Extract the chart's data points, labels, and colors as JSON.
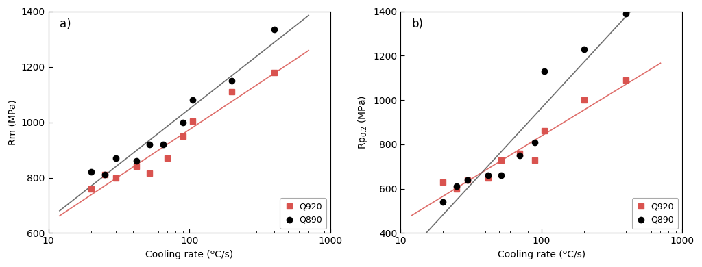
{
  "panel_a": {
    "title": "a)",
    "ylabel": "Rm (MPa)",
    "xlabel": "Cooling rate (ºC/s)",
    "ylim": [
      600,
      1400
    ],
    "xlim": [
      10,
      1000
    ],
    "yticks": [
      600,
      800,
      1000,
      1200,
      1400
    ],
    "Q920_x": [
      20,
      25,
      30,
      42,
      52,
      70,
      90,
      105,
      200,
      400
    ],
    "Q920_y": [
      760,
      810,
      800,
      840,
      815,
      870,
      950,
      1005,
      1110,
      1180
    ],
    "Q890_x": [
      20,
      25,
      30,
      42,
      52,
      65,
      90,
      105,
      200,
      400
    ],
    "Q890_y": [
      820,
      810,
      870,
      860,
      920,
      920,
      1000,
      1080,
      1150,
      1335
    ]
  },
  "panel_b": {
    "title": "b)",
    "ylabel": "Rp$_{0.2}$ (MPa)",
    "xlabel": "Cooling rate (ºC/s)",
    "ylim": [
      400,
      1400
    ],
    "xlim": [
      10,
      1000
    ],
    "yticks": [
      400,
      600,
      800,
      1000,
      1200,
      1400
    ],
    "Q920_x": [
      20,
      25,
      30,
      42,
      52,
      70,
      90,
      105,
      200,
      400
    ],
    "Q920_y": [
      630,
      600,
      640,
      650,
      730,
      760,
      730,
      860,
      1000,
      1090
    ],
    "Q890_x": [
      20,
      25,
      30,
      42,
      52,
      70,
      90,
      105,
      200,
      400
    ],
    "Q890_y": [
      540,
      610,
      640,
      660,
      660,
      750,
      810,
      1130,
      1230,
      1390
    ]
  },
  "color_Q920": "#d9534f",
  "color_Q890": "#555555",
  "legend_labels": [
    "Q920",
    "Q890"
  ],
  "marker_Q920": "s",
  "marker_Q890": "o",
  "markersize": 6,
  "linewidth": 1.2
}
